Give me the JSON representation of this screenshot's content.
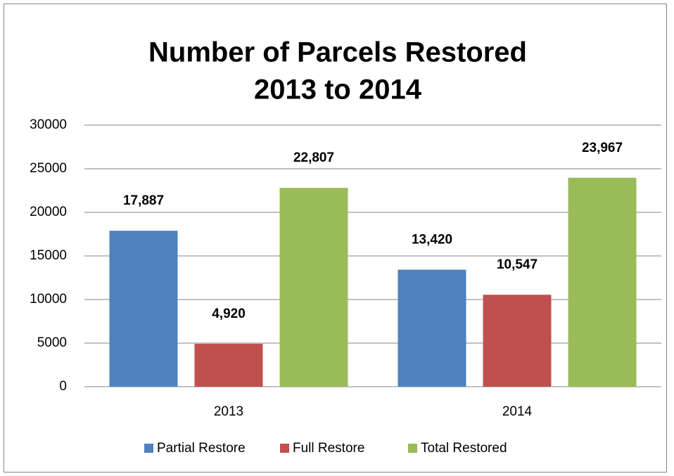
{
  "chart_data": {
    "type": "bar",
    "title": [
      "Number of Parcels Restored",
      "2013 to 2014"
    ],
    "categories": [
      "2013",
      "2014"
    ],
    "series": [
      {
        "name": "Partial Restore",
        "color": "#4f81bd",
        "values": [
          17887,
          13420
        ],
        "value_labels": [
          "17,887",
          "13,420"
        ]
      },
      {
        "name": "Full Restore",
        "color": "#c0504d",
        "values": [
          4920,
          10547
        ],
        "value_labels": [
          "4,920",
          "10,547"
        ]
      },
      {
        "name": "Total Restored",
        "color": "#9bbb59",
        "values": [
          22807,
          23967
        ],
        "value_labels": [
          "22,807",
          "23,967"
        ]
      }
    ],
    "ylim": [
      0,
      30000
    ],
    "yticks": [
      0,
      5000,
      10000,
      15000,
      20000,
      25000,
      30000
    ],
    "grid": true,
    "legend": "bottom"
  }
}
